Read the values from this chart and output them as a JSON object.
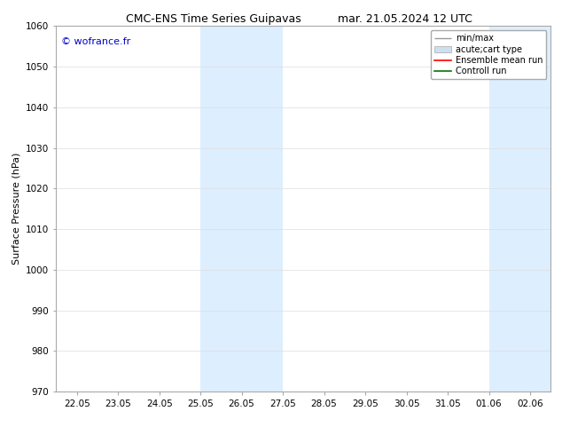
{
  "title_left": "CMC-ENS Time Series Guipavas",
  "title_right": "mar. 21.05.2024 12 UTC",
  "ylabel": "Surface Pressure (hPa)",
  "ylim": [
    970,
    1060
  ],
  "yticks": [
    970,
    980,
    990,
    1000,
    1010,
    1020,
    1030,
    1040,
    1050,
    1060
  ],
  "xtick_labels": [
    "22.05",
    "23.05",
    "24.05",
    "25.05",
    "26.05",
    "27.05",
    "28.05",
    "29.05",
    "30.05",
    "31.05",
    "01.06",
    "02.06"
  ],
  "xtick_positions": [
    0,
    1,
    2,
    3,
    4,
    5,
    6,
    7,
    8,
    9,
    10,
    11
  ],
  "xlim": [
    -0.5,
    11.5
  ],
  "shaded_regions": [
    {
      "xstart": 3,
      "xend": 5,
      "color": "#ddeeff"
    },
    {
      "xstart": 10,
      "xend": 11.5,
      "color": "#ddeeff"
    }
  ],
  "watermark": "© wofrance.fr",
  "watermark_color": "#0000cc",
  "legend_entries": [
    {
      "label": "min/max",
      "color": "#999999",
      "lw": 1.0
    },
    {
      "label": "acute;cart type",
      "color": "#cce0f0",
      "lw": 6
    },
    {
      "label": "Ensemble mean run",
      "color": "#ff0000",
      "lw": 1.2
    },
    {
      "label": "Controll run",
      "color": "#007700",
      "lw": 1.2
    }
  ],
  "bg_color": "#ffffff",
  "grid_color": "#dddddd",
  "title_fontsize": 9,
  "label_fontsize": 8,
  "tick_fontsize": 7.5,
  "legend_fontsize": 7,
  "watermark_fontsize": 8
}
